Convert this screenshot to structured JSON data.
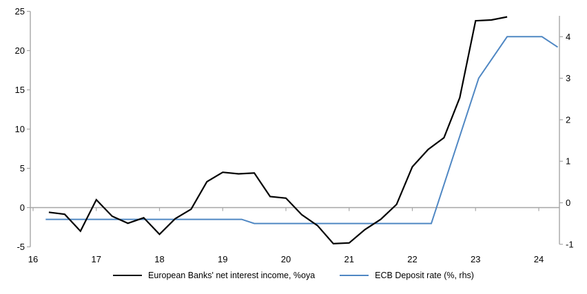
{
  "chart_data": {
    "type": "line",
    "title": "",
    "xlabel": "",
    "ylabel_left": "",
    "ylabel_right": "",
    "grid": false,
    "legend_position": "bottom-center",
    "background_color": "#ffffff",
    "axis_color": "#a6a6a6",
    "text_color": "#000000",
    "x_axis": {
      "ticks": [
        16,
        17,
        18,
        19,
        20,
        21,
        22,
        23,
        24
      ],
      "range": [
        15.95,
        24.35
      ]
    },
    "left_axis": {
      "ticks": [
        -5,
        0,
        5,
        10,
        15,
        20,
        25
      ],
      "range": [
        -5,
        25
      ]
    },
    "right_axis": {
      "ticks": [
        -1,
        0,
        1,
        2,
        3,
        4
      ],
      "range": [
        -1,
        4
      ]
    },
    "series": [
      {
        "name": "European Banks' net interest income, %oya",
        "axis": "left",
        "color": "#000000",
        "width": 2.2,
        "x": [
          16.25,
          16.5,
          16.75,
          17.0,
          17.25,
          17.5,
          17.75,
          18.0,
          18.25,
          18.5,
          18.75,
          19.0,
          19.25,
          19.5,
          19.75,
          20.0,
          20.25,
          20.5,
          20.75,
          21.0,
          21.25,
          21.5,
          21.75,
          22.0,
          22.25,
          22.5,
          22.75,
          23.0,
          23.25,
          23.5
        ],
        "values": [
          -0.6,
          -0.85,
          -3.0,
          1.0,
          -1.1,
          -2.0,
          -1.3,
          -3.4,
          -1.4,
          -0.2,
          3.3,
          4.5,
          4.3,
          4.4,
          1.4,
          1.2,
          -0.9,
          -2.3,
          -4.6,
          -4.5,
          -2.8,
          -1.5,
          0.4,
          5.2,
          7.4,
          8.9,
          14.0,
          23.8,
          23.9,
          24.3
        ]
      },
      {
        "name": "ECB Deposit rate (%, rhs)",
        "axis": "right",
        "color": "#4f87c3",
        "width": 2,
        "x": [
          16.2,
          19.3,
          19.5,
          22.3,
          23.05,
          23.5,
          24.05,
          24.3
        ],
        "values": [
          -0.4,
          -0.4,
          -0.5,
          -0.5,
          3.0,
          4.0,
          4.0,
          3.75
        ]
      }
    ]
  },
  "legend": {
    "items": [
      {
        "label": "European Banks' net interest income, %oya"
      },
      {
        "label": "ECB Deposit rate (%, rhs)"
      }
    ]
  }
}
